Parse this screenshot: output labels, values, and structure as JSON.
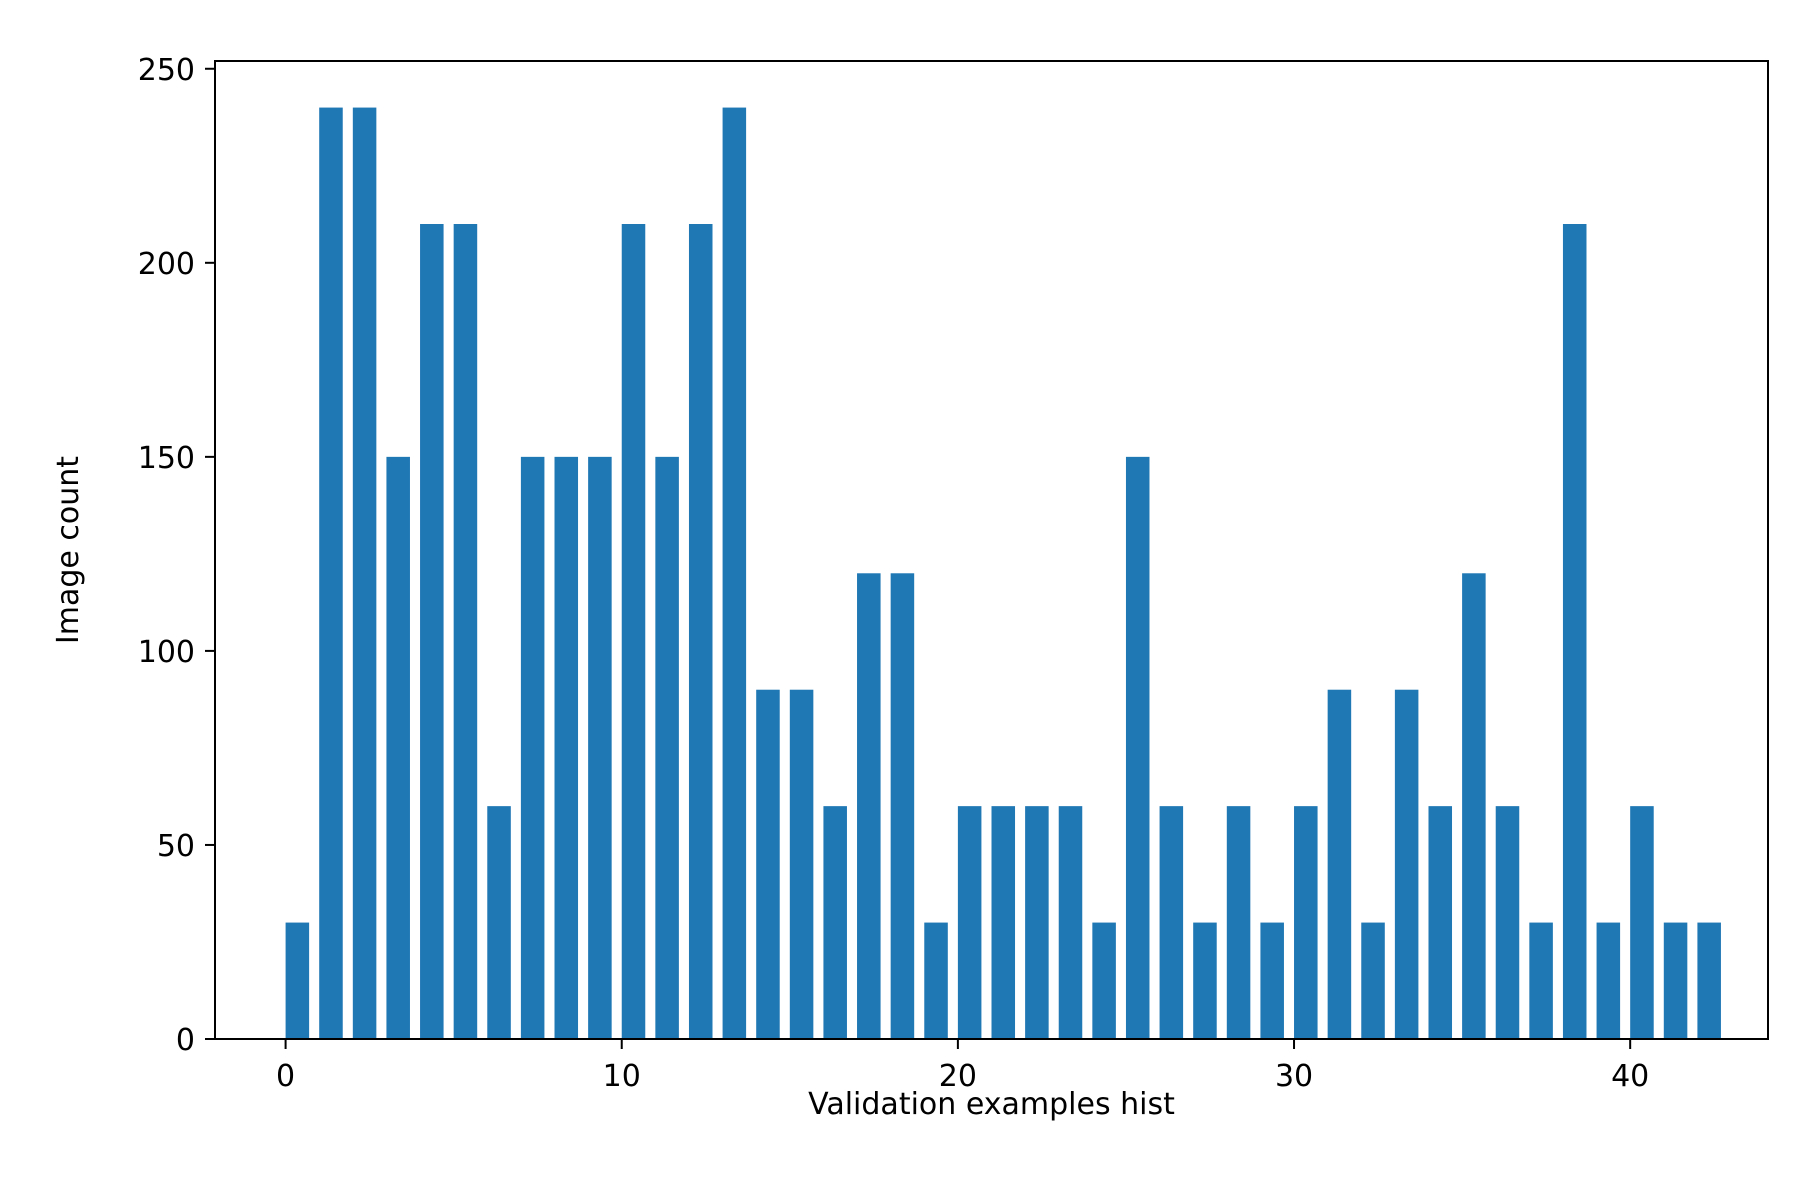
{
  "chart_data": {
    "type": "bar",
    "title": "",
    "xlabel": "Validation examples hist",
    "ylabel": "Image count",
    "x": [
      0,
      1,
      2,
      3,
      4,
      5,
      6,
      7,
      8,
      9,
      10,
      11,
      12,
      13,
      14,
      15,
      16,
      17,
      18,
      19,
      20,
      21,
      22,
      23,
      24,
      25,
      26,
      27,
      28,
      29,
      30,
      31,
      32,
      33,
      34,
      35,
      36,
      37,
      38,
      39,
      40,
      41,
      42
    ],
    "values": [
      30,
      240,
      240,
      150,
      210,
      210,
      60,
      150,
      150,
      150,
      210,
      150,
      210,
      240,
      90,
      90,
      60,
      120,
      120,
      30,
      60,
      60,
      60,
      60,
      30,
      150,
      60,
      30,
      60,
      30,
      60,
      90,
      30,
      90,
      60,
      120,
      60,
      30,
      210,
      30,
      60,
      30,
      30
    ],
    "xlim": [
      -2.1,
      44.1
    ],
    "ylim": [
      0,
      252
    ],
    "xticks": [
      0,
      10,
      20,
      30,
      40
    ],
    "xtick_labels": [
      "0",
      "10",
      "20",
      "30",
      "40"
    ],
    "yticks": [
      0,
      50,
      100,
      150,
      200,
      250
    ],
    "ytick_labels": [
      "0",
      "50",
      "100",
      "150",
      "200",
      "250"
    ],
    "bar_color": "#1f77b4",
    "grid": false,
    "legend": "none"
  }
}
